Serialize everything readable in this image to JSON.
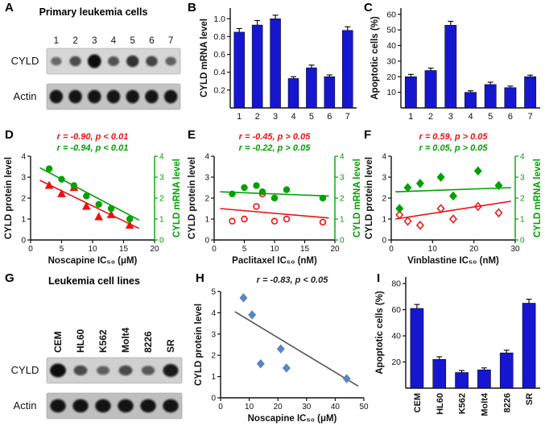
{
  "panels": {
    "A": {
      "letter": "A",
      "title": "Primary leukemia cells"
    },
    "B": {
      "letter": "B"
    },
    "C": {
      "letter": "C"
    },
    "D": {
      "letter": "D"
    },
    "E": {
      "letter": "E"
    },
    "F": {
      "letter": "F"
    },
    "G": {
      "letter": "G",
      "title": "Leukemia cell lines"
    },
    "H": {
      "letter": "H"
    },
    "I": {
      "letter": "I"
    }
  },
  "colors": {
    "bar_blue": "#1616d0",
    "red": "#ee1111",
    "green": "#00a100",
    "h_point_blue": "#5b84c4",
    "axis_black": "#111111"
  },
  "blots": [
    {
      "id": "A",
      "lane_labels": [
        "1",
        "2",
        "3",
        "4",
        "5",
        "6",
        "7"
      ],
      "rotated_labels": false,
      "rows": [
        {
          "label": "CYLD",
          "bg": "#d6d6d6",
          "intensities": [
            0.35,
            0.55,
            1.0,
            0.5,
            0.75,
            0.6,
            0.4
          ]
        },
        {
          "label": "Actin",
          "bg": "#c3c3c3",
          "intensities": [
            0.95,
            0.95,
            0.95,
            0.95,
            0.95,
            0.95,
            0.95
          ]
        }
      ]
    },
    {
      "id": "G",
      "lane_labels": [
        "CEM",
        "HL60",
        "K562",
        "Molt4",
        "8226",
        "SR"
      ],
      "rotated_labels": true,
      "rows": [
        {
          "label": "CYLD",
          "bg": "#d0d0d0",
          "intensities": [
            1.0,
            0.55,
            0.4,
            0.55,
            0.45,
            0.9
          ]
        },
        {
          "label": "Actin",
          "bg": "#bfbfbf",
          "intensities": [
            0.95,
            0.95,
            0.95,
            0.95,
            0.95,
            0.95
          ]
        }
      ]
    }
  ],
  "chart_data": [
    {
      "id": "B",
      "type": "bar",
      "ylabel": "CYLD mRNA level",
      "categories": [
        "1",
        "2",
        "3",
        "4",
        "5",
        "6",
        "7"
      ],
      "values": [
        0.85,
        0.93,
        1.0,
        0.33,
        0.45,
        0.35,
        0.87
      ],
      "errors": [
        0.04,
        0.05,
        0.04,
        0.02,
        0.03,
        0.02,
        0.04
      ],
      "ylim": [
        0,
        1.12
      ],
      "yticks": [
        0.2,
        0.4,
        0.6,
        0.8,
        1.0
      ],
      "ytick_labels": [
        "0.2",
        "0.4",
        "0.6",
        "0.8",
        "1.0"
      ],
      "bar_color": "#1616d0"
    },
    {
      "id": "C",
      "type": "bar",
      "ylabel": "Apoptotic cells (%)",
      "categories": [
        "1",
        "2",
        "3",
        "4",
        "5",
        "6",
        "7"
      ],
      "values": [
        20,
        24,
        53,
        10,
        15,
        13,
        20
      ],
      "errors": [
        1.5,
        1.5,
        2.5,
        1,
        1.5,
        1,
        1
      ],
      "ylim": [
        0,
        64
      ],
      "yticks": [
        10,
        20,
        30,
        40,
        50,
        60
      ],
      "bar_color": "#1616d0"
    },
    {
      "id": "D",
      "type": "scatter",
      "xlabel": "Noscapine IC₅₀ (μM)",
      "ylabel_left": "CYLD protein level",
      "ylabel_right": "CYLD mRNA level",
      "xlim": [
        0,
        20
      ],
      "xticks": [
        0,
        5,
        10,
        15,
        20
      ],
      "ylim": [
        0,
        4
      ],
      "yticks": [
        0,
        1,
        2,
        3,
        4
      ],
      "annotations": [
        {
          "text": "r = -0.90, p < 0.01",
          "color": "#ee1111"
        },
        {
          "text": "r = -0.94, p < 0.01",
          "color": "#00a100"
        }
      ],
      "series": [
        {
          "name": "CYLD protein",
          "marker": "triangle",
          "filled": true,
          "color": "#ee1111",
          "points": [
            [
              3,
              2.6
            ],
            [
              5,
              2.2
            ],
            [
              7,
              2.5
            ],
            [
              9,
              1.6
            ],
            [
              11,
              1.1
            ],
            [
              13,
              1.2
            ],
            [
              16,
              0.7
            ]
          ]
        },
        {
          "name": "CYLD mRNA",
          "marker": "circle",
          "filled": true,
          "color": "#00a100",
          "points": [
            [
              3,
              3.4
            ],
            [
              5,
              2.9
            ],
            [
              7,
              2.6
            ],
            [
              9,
              2.1
            ],
            [
              11,
              1.7
            ],
            [
              13,
              1.5
            ],
            [
              16,
              1.0
            ]
          ]
        }
      ],
      "trend_lines": [
        {
          "color": "#ee1111",
          "x1": 1.5,
          "y1": 2.85,
          "x2": 17.5,
          "y2": 0.55
        },
        {
          "color": "#00a100",
          "x1": 1.5,
          "y1": 3.45,
          "x2": 17.5,
          "y2": 0.95
        }
      ]
    },
    {
      "id": "E",
      "type": "scatter",
      "xlabel": "Paclitaxel IC₅₀ (nM)",
      "ylabel_left": "CYLD protein level",
      "ylabel_right": "CYLD mRNA level",
      "xlim": [
        0,
        20
      ],
      "xticks": [
        0,
        5,
        10,
        15,
        20
      ],
      "ylim": [
        0,
        4
      ],
      "yticks": [
        0,
        1,
        2,
        3,
        4
      ],
      "annotations": [
        {
          "text": "r = -0.45, p > 0.05",
          "color": "#ee1111"
        },
        {
          "text": "r = -0.22, p > 0.05",
          "color": "#00a100"
        }
      ],
      "series": [
        {
          "name": "CYLD protein",
          "marker": "circle",
          "filled": false,
          "color": "#ee1111",
          "points": [
            [
              3,
              0.9
            ],
            [
              5,
              1.0
            ],
            [
              7,
              1.6
            ],
            [
              8,
              2.2
            ],
            [
              10,
              0.9
            ],
            [
              12,
              1.0
            ],
            [
              18,
              0.85
            ]
          ]
        },
        {
          "name": "CYLD mRNA",
          "marker": "circle",
          "filled": true,
          "color": "#00a100",
          "points": [
            [
              3,
              2.2
            ],
            [
              5,
              2.5
            ],
            [
              7,
              2.6
            ],
            [
              8,
              2.3
            ],
            [
              10,
              2.0
            ],
            [
              12,
              2.4
            ],
            [
              18,
              2.0
            ]
          ]
        }
      ],
      "trend_lines": [
        {
          "color": "#ee1111",
          "x1": 1,
          "y1": 1.5,
          "x2": 19,
          "y2": 1.05
        },
        {
          "color": "#00a100",
          "x1": 1,
          "y1": 2.3,
          "x2": 19,
          "y2": 2.1
        }
      ]
    },
    {
      "id": "F",
      "type": "scatter",
      "xlabel": "Vinblastine  IC₅₀ (nM)",
      "ylabel_left": "CYLD protein level",
      "ylabel_right": "CYLD mRNA level",
      "xlim": [
        0,
        30
      ],
      "xticks": [
        0,
        10,
        20,
        30
      ],
      "ylim": [
        0,
        4
      ],
      "yticks": [
        0,
        1,
        2,
        3,
        4
      ],
      "annotations": [
        {
          "text": "r = 0.59, p > 0.05",
          "color": "#ee1111"
        },
        {
          "text": "r = 0.05, p > 0.05",
          "color": "#00a100"
        }
      ],
      "series": [
        {
          "name": "CYLD protein",
          "marker": "diamond",
          "filled": false,
          "color": "#ee1111",
          "points": [
            [
              2,
              1.2
            ],
            [
              4,
              0.9
            ],
            [
              7,
              0.7
            ],
            [
              12,
              1.5
            ],
            [
              15,
              1.0
            ],
            [
              21,
              1.6
            ],
            [
              26,
              1.3
            ]
          ]
        },
        {
          "name": "CYLD mRNA",
          "marker": "diamond",
          "filled": true,
          "color": "#00a100",
          "points": [
            [
              2,
              1.5
            ],
            [
              4,
              2.5
            ],
            [
              7,
              2.7
            ],
            [
              12,
              3.0
            ],
            [
              15,
              2.1
            ],
            [
              21,
              3.3
            ],
            [
              26,
              2.6
            ]
          ]
        }
      ],
      "trend_lines": [
        {
          "color": "#ee1111",
          "x1": 1,
          "y1": 1.0,
          "x2": 29,
          "y2": 1.85
        },
        {
          "color": "#00a100",
          "x1": 1,
          "y1": 2.3,
          "x2": 29,
          "y2": 2.5
        }
      ]
    },
    {
      "id": "H",
      "type": "scatter",
      "xlabel": "Noscapine  IC₅₀ (μM)",
      "ylabel_left": "CYLD protein level",
      "xlim": [
        0,
        50
      ],
      "xticks": [
        0,
        10,
        20,
        30,
        40,
        50
      ],
      "ylim": [
        0,
        5
      ],
      "yticks": [
        0,
        1,
        2,
        3,
        4,
        5
      ],
      "annotations": [
        {
          "text": "r = -0.83, p < 0.05",
          "color": "#222222"
        }
      ],
      "series": [
        {
          "name": "leukemia cell lines",
          "marker": "diamond",
          "filled": true,
          "color": "#5b84c4",
          "points": [
            [
              8,
              4.7
            ],
            [
              11,
              3.9
            ],
            [
              14,
              1.6
            ],
            [
              21,
              2.3
            ],
            [
              23,
              1.4
            ],
            [
              44,
              0.9
            ]
          ]
        }
      ],
      "trend_lines": [
        {
          "color": "#555555",
          "x1": 5,
          "y1": 4.05,
          "x2": 48,
          "y2": 0.55
        }
      ]
    },
    {
      "id": "I",
      "type": "bar",
      "ylabel": "Apoptotic cells (%)",
      "categories": [
        "CEM",
        "HL60",
        "K562",
        "Molt4",
        "8226",
        "SR"
      ],
      "values": [
        61,
        22,
        12,
        14,
        27,
        65
      ],
      "errors": [
        3,
        2,
        1.5,
        1.5,
        2,
        3
      ],
      "ylim": [
        0,
        85
      ],
      "yticks": [
        20,
        40,
        60,
        80
      ],
      "bar_color": "#1616d0",
      "rotate_xlabels": true
    }
  ]
}
